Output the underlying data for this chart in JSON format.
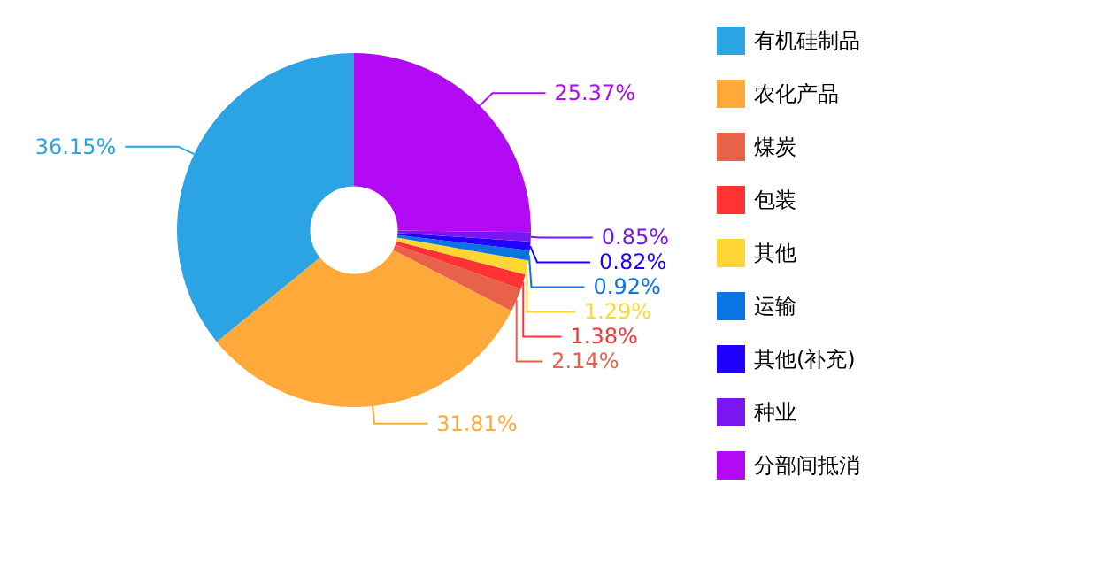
{
  "chart_data": {
    "type": "donut",
    "categories": [
      "有机硅制品",
      "农化产品",
      "煤炭",
      "包装",
      "其他",
      "运输",
      "其他(补充)",
      "种业",
      "分部间抵消"
    ],
    "values": [
      36.15,
      31.81,
      2.14,
      1.38,
      1.29,
      0.92,
      0.82,
      0.85,
      25.37
    ],
    "colors": [
      "#2ca3e3",
      "#ffa93a",
      "#e8624a",
      "#ff3333",
      "#ffd633",
      "#0a74e3",
      "#2200ff",
      "#7a16f0",
      "#b30af5"
    ],
    "value_labels": [
      "36.15%",
      "31.81%",
      "2.14%",
      "1.38%",
      "1.29%",
      "0.92%",
      "0.82%",
      "0.85%",
      "25.37%"
    ],
    "legend": "right"
  }
}
